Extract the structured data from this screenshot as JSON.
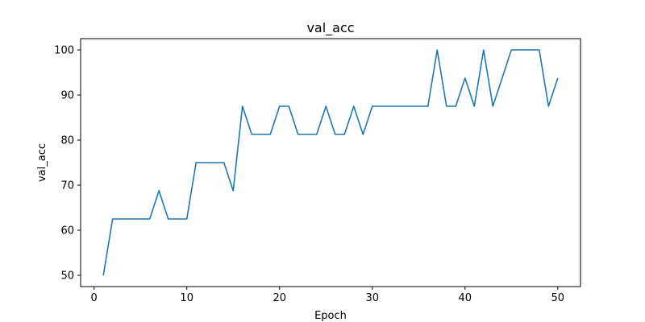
{
  "chart_data": {
    "type": "line",
    "title": "val_acc",
    "xlabel": "Epoch",
    "ylabel": "val_acc",
    "xlim": [
      -1.45,
      52.45
    ],
    "ylim": [
      47.5,
      102.5
    ],
    "xticks": [
      0,
      10,
      20,
      30,
      40,
      50
    ],
    "yticks": [
      50,
      60,
      70,
      80,
      90,
      100
    ],
    "grid": false,
    "series": [
      {
        "color": "#1f77b4",
        "x": [
          1,
          2,
          3,
          4,
          5,
          6,
          7,
          8,
          9,
          10,
          11,
          12,
          13,
          14,
          15,
          16,
          17,
          18,
          19,
          20,
          21,
          22,
          23,
          24,
          25,
          26,
          27,
          28,
          29,
          30,
          31,
          32,
          33,
          34,
          35,
          36,
          37,
          38,
          39,
          40,
          41,
          42,
          43,
          44,
          45,
          46,
          47,
          48,
          49,
          50
        ],
        "y": [
          50,
          62.5,
          62.5,
          62.5,
          62.5,
          62.5,
          68.75,
          62.5,
          62.5,
          62.5,
          75,
          75,
          75,
          75,
          68.75,
          87.5,
          81.25,
          81.25,
          81.25,
          87.5,
          87.5,
          81.25,
          81.25,
          81.25,
          87.5,
          81.25,
          81.25,
          87.5,
          81.25,
          87.5,
          87.5,
          87.5,
          87.5,
          87.5,
          87.5,
          87.5,
          100,
          87.5,
          87.5,
          93.75,
          87.5,
          100,
          87.5,
          93.75,
          100,
          100,
          100,
          100,
          87.5,
          93.75
        ]
      }
    ]
  }
}
